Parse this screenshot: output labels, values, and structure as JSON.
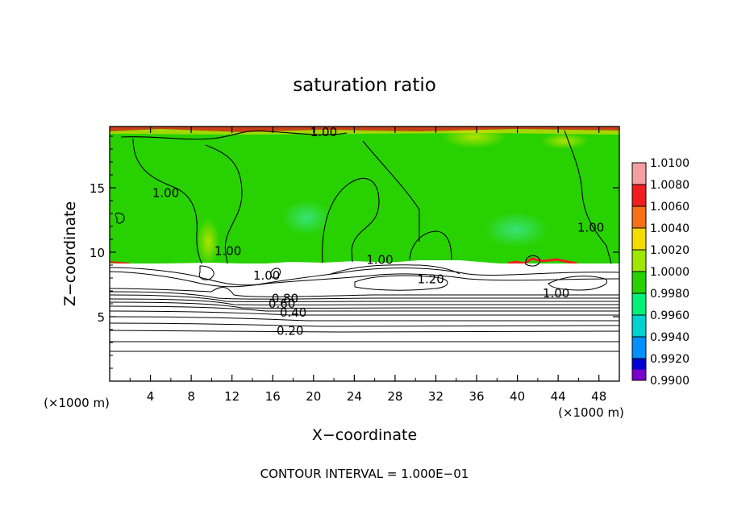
{
  "chart_data": {
    "type": "heatmap",
    "title": "saturation ratio",
    "xlabel": "X−coordinate",
    "ylabel": "Z−coordinate",
    "x_unit_label": "(×1000 m)",
    "y_unit_label": "(×1000 m)",
    "xlim": [
      0,
      50
    ],
    "ylim": [
      0,
      19.75
    ],
    "x_ticks": [
      4,
      8,
      12,
      16,
      20,
      24,
      28,
      32,
      36,
      40,
      44,
      48
    ],
    "y_ticks": [
      5,
      10,
      15
    ],
    "footer": "CONTOUR INTERVAL = 1.000E−01",
    "colorbar": {
      "levels": [
        "1.0100",
        "1.0080",
        "1.0060",
        "1.0040",
        "1.0020",
        "1.0000",
        "0.9980",
        "0.9960",
        "0.9940",
        "0.9920",
        "0.9900"
      ],
      "colors": [
        "#f4a0a0",
        "#f01e1e",
        "#f87018",
        "#f4dc00",
        "#a0e600",
        "#28d200",
        "#00f078",
        "#00d2d2",
        "#0090ff",
        "#0000d2",
        "#7800c8"
      ]
    },
    "contour_labels": [
      {
        "text": "1.00",
        "x": 21,
        "z": 19.3
      },
      {
        "text": "1.00",
        "x": 5.5,
        "z": 14.6
      },
      {
        "text": "1.00",
        "x": 11.6,
        "z": 10.1
      },
      {
        "text": "1.00",
        "x": 47.2,
        "z": 11.9
      },
      {
        "text": "1.00",
        "x": 26.5,
        "z": 9.4
      },
      {
        "text": "1.20",
        "x": 31.5,
        "z": 7.9
      },
      {
        "text": "1.00",
        "x": 43.8,
        "z": 6.8
      },
      {
        "text": "1.00",
        "x": 15.4,
        "z": 8.2
      },
      {
        "text": "0.80",
        "x": 17.2,
        "z": 6.4
      },
      {
        "text": "0.60",
        "x": 16.9,
        "z": 6.0
      },
      {
        "text": "0.40",
        "x": 18.0,
        "z": 5.3
      },
      {
        "text": "0.20",
        "x": 17.7,
        "z": 3.9
      }
    ]
  }
}
